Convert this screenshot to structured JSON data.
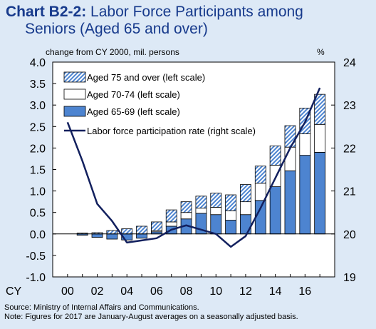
{
  "header": {
    "label": "Chart B2-2:",
    "title_line1": "Labor Force Participants among",
    "title_line2": "Seniors (Aged 65 and over)"
  },
  "units": {
    "left": "change from CY 2000, mil. persons",
    "right": "%"
  },
  "footnotes": {
    "source": "Source: Ministry of Internal Affairs and Communications.",
    "note": "Note: Figures for 2017 are January-August averages on a seasonally adjusted basis."
  },
  "colors": {
    "background": "#dde9f6",
    "plot_background": "#ffffff",
    "aged_65_69": "#4d84d0",
    "aged_70_74": "#ffffff",
    "aged_75_over_hatch": "#4d84d0",
    "participation_line": "#12205e",
    "title": "#173a8c"
  },
  "chart_data": {
    "type": "bar",
    "stacked": true,
    "x_axis_label": "CY",
    "categories": [
      "2000",
      "2001",
      "2002",
      "2003",
      "2004",
      "2005",
      "2006",
      "2007",
      "2008",
      "2009",
      "2010",
      "2011",
      "2012",
      "2013",
      "2014",
      "2015",
      "2016",
      "2017"
    ],
    "x_tick_labels": [
      "00",
      "02",
      "04",
      "06",
      "08",
      "10",
      "12",
      "14",
      "16"
    ],
    "series": [
      {
        "name": "Aged 65-69 (left scale)",
        "values": [
          0.0,
          -0.03,
          -0.08,
          -0.12,
          -0.14,
          -0.1,
          0.05,
          0.18,
          0.35,
          0.48,
          0.45,
          0.32,
          0.45,
          0.78,
          1.1,
          1.47,
          1.83,
          1.9
        ]
      },
      {
        "name": "Aged 70-74 (left scale)",
        "values": [
          0.0,
          0.0,
          0.0,
          0.0,
          0.0,
          0.0,
          0.03,
          0.1,
          0.15,
          0.12,
          0.17,
          0.22,
          0.3,
          0.4,
          0.5,
          0.55,
          0.5,
          0.65
        ]
      },
      {
        "name": "Aged 75 and over (left scale)",
        "values": [
          0.0,
          0.02,
          0.03,
          0.08,
          0.12,
          0.18,
          0.2,
          0.28,
          0.25,
          0.28,
          0.33,
          0.37,
          0.4,
          0.4,
          0.45,
          0.5,
          0.6,
          0.7
        ]
      }
    ],
    "line": {
      "name": "Labor force participation rate (right scale)",
      "axis": "right",
      "values": [
        22.6,
        21.7,
        20.7,
        20.3,
        19.8,
        19.85,
        19.9,
        20.1,
        20.2,
        20.1,
        20.0,
        19.7,
        19.95,
        20.6,
        21.3,
        22.0,
        22.6,
        23.4
      ]
    },
    "left_axis": {
      "min": -1.0,
      "max": 4.0,
      "ticks": [
        "-1.0",
        "-0.5",
        "0.0",
        "0.5",
        "1.0",
        "1.5",
        "2.0",
        "2.5",
        "3.0",
        "3.5",
        "4.0"
      ]
    },
    "right_axis": {
      "min": 19,
      "max": 24,
      "ticks": [
        "19",
        "20",
        "21",
        "22",
        "23",
        "24"
      ]
    },
    "grid": false,
    "legend_position": "top-left"
  }
}
